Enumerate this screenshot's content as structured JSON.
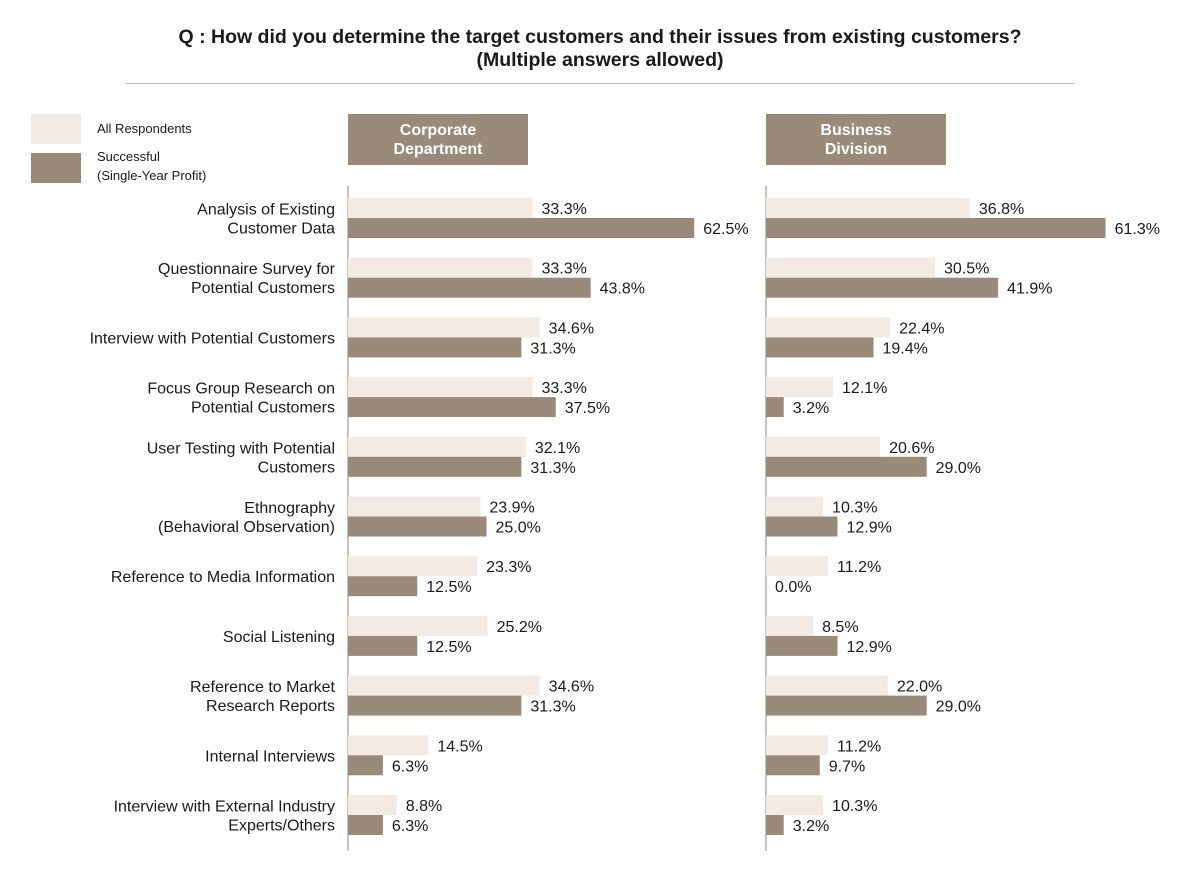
{
  "title": {
    "line1": "Q : How did you determine the target customers and their issues from existing customers?",
    "line2": "(Multiple answers allowed)"
  },
  "colors": {
    "all": "#f3ebe3",
    "successful": "#9a8a7a",
    "axis": "#888888",
    "header": "#9a8a7a"
  },
  "legend": {
    "all": "All Respondents",
    "successful_line1": "Successful",
    "successful_line2": "(Single-Year Profit)"
  },
  "panels": {
    "corporate": {
      "line1": "Corporate",
      "line2": "Department"
    },
    "business": {
      "line1": "Business",
      "line2": "Division"
    }
  },
  "chart_data": {
    "type": "bar",
    "orientation": "horizontal",
    "grid": false,
    "xlim": [
      0,
      100
    ],
    "categories": [
      [
        "Analysis of Existing",
        "Customer Data"
      ],
      [
        "Questionnaire Survey for",
        "Potential Customers"
      ],
      [
        "Interview with Potential Customers"
      ],
      [
        "Focus Group Research on",
        "Potential Customers"
      ],
      [
        "User Testing with Potential",
        "Customers"
      ],
      [
        "Ethnography",
        "(Behavioral Observation)"
      ],
      [
        "Reference to Media Information"
      ],
      [
        "Social Listening"
      ],
      [
        "Reference to Market",
        "Research Reports"
      ],
      [
        "Internal Interviews"
      ],
      [
        "Interview with External Industry",
        "Experts/Others"
      ]
    ],
    "panels": [
      {
        "name": "Corporate Department",
        "series": [
          {
            "name": "All Respondents",
            "values": [
              33.3,
              33.3,
              34.6,
              33.3,
              32.1,
              23.9,
              23.3,
              25.2,
              34.6,
              14.5,
              8.8
            ]
          },
          {
            "name": "Successful (Single-Year Profit)",
            "values": [
              62.5,
              43.8,
              31.3,
              37.5,
              31.3,
              25.0,
              12.5,
              12.5,
              31.3,
              6.3,
              6.3
            ]
          }
        ]
      },
      {
        "name": "Business Division",
        "series": [
          {
            "name": "All Respondents",
            "values": [
              36.8,
              30.5,
              22.4,
              12.1,
              20.6,
              10.3,
              11.2,
              8.5,
              22.0,
              11.2,
              10.3
            ]
          },
          {
            "name": "Successful (Single-Year Profit)",
            "values": [
              61.3,
              41.9,
              19.4,
              3.2,
              29.0,
              12.9,
              0.0,
              12.9,
              29.0,
              9.7,
              3.2
            ]
          }
        ]
      }
    ]
  }
}
